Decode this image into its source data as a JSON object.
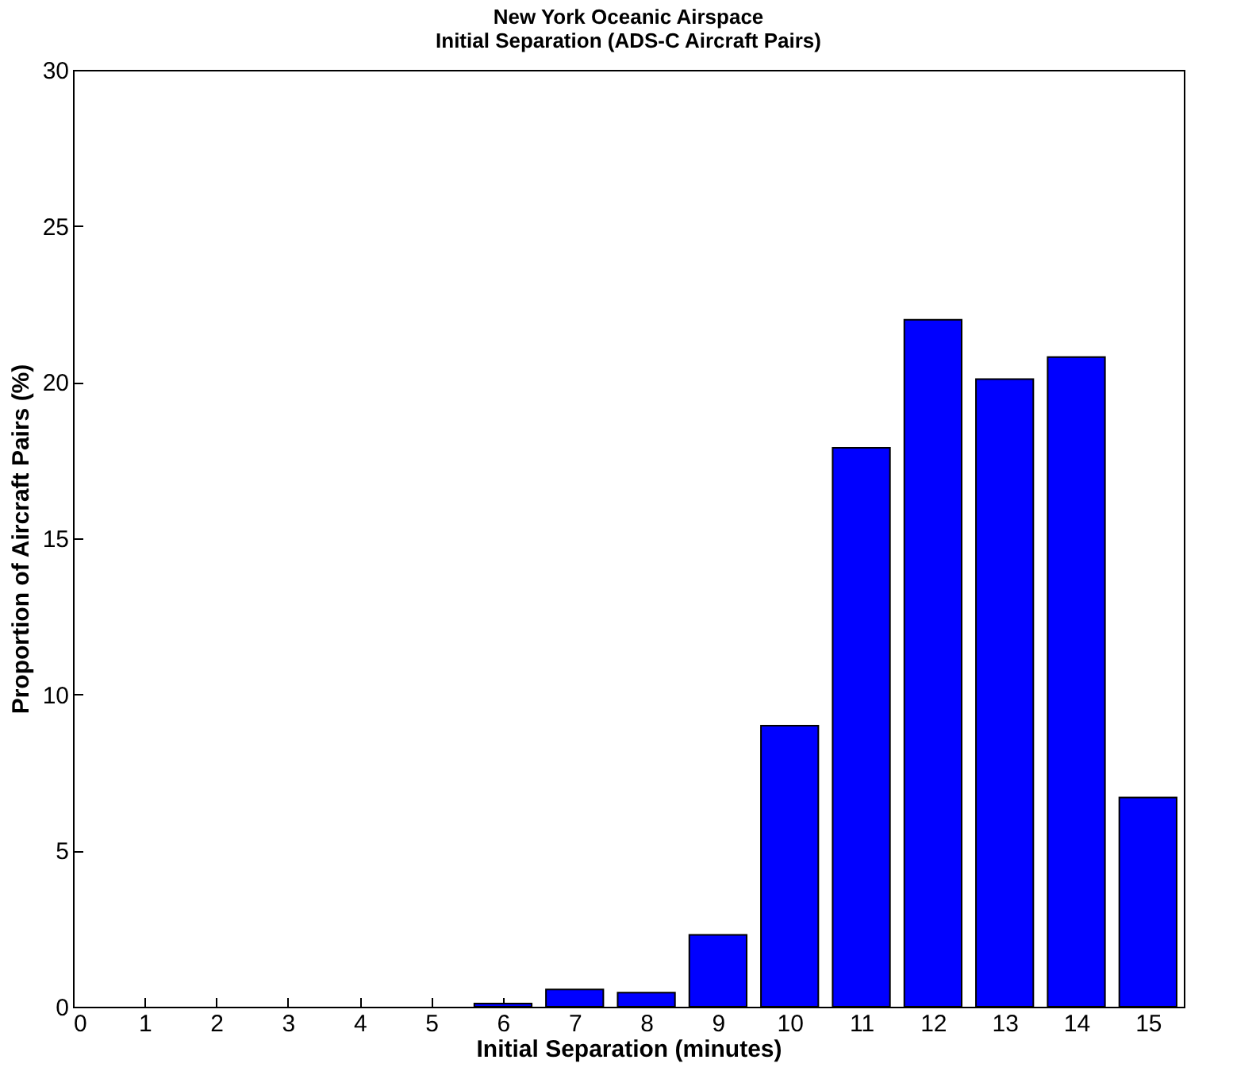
{
  "chart_data": {
    "type": "bar",
    "title": "New York Oceanic Airspace\nInitial Separation (ADS-C Aircraft Pairs)",
    "xlabel": "Initial Separation (minutes)",
    "ylabel": "Proportion of Aircraft Pairs (%)",
    "x": [
      6,
      7,
      8,
      9,
      10,
      11,
      12,
      13,
      14,
      15
    ],
    "values": [
      0.1,
      0.55,
      0.45,
      2.3,
      9.0,
      17.9,
      22.0,
      20.1,
      20.8,
      6.7
    ],
    "color": "#0000ff",
    "xlim": [
      0,
      15.5
    ],
    "xticks": [
      0,
      1,
      2,
      3,
      4,
      5,
      6,
      7,
      8,
      9,
      10,
      11,
      12,
      13,
      14,
      15
    ],
    "ylim": [
      0,
      30
    ],
    "yticks": [
      0,
      5,
      10,
      15,
      20,
      25,
      30
    ],
    "grid": false
  }
}
